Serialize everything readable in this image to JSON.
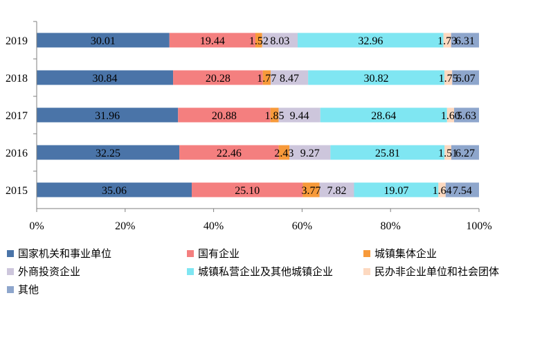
{
  "chart_data": {
    "type": "bar",
    "orientation": "horizontal",
    "stacked": "percent",
    "categories": [
      "2019",
      "2018",
      "2017",
      "2016",
      "2015"
    ],
    "series": [
      {
        "name": "国家机关和事业单位",
        "color": "#4a74a8",
        "values": [
          30.01,
          30.84,
          31.96,
          32.25,
          35.06
        ]
      },
      {
        "name": "国有企业",
        "color": "#f47f7f",
        "values": [
          19.44,
          20.28,
          20.88,
          22.46,
          25.1
        ]
      },
      {
        "name": "城镇集体企业",
        "color": "#f79a3a",
        "values": [
          1.52,
          1.77,
          1.85,
          2.43,
          3.77
        ]
      },
      {
        "name": "外商投资企业",
        "color": "#cdc6dc",
        "values": [
          8.03,
          8.47,
          9.44,
          9.27,
          7.82
        ]
      },
      {
        "name": "城镇私营企业及其他城镇企业",
        "color": "#7fe6f2",
        "values": [
          32.96,
          30.82,
          28.64,
          25.81,
          19.07
        ]
      },
      {
        "name": "民办非企业单位和社会团体",
        "color": "#fdd9c0",
        "values": [
          1.73,
          1.75,
          1.6,
          1.51,
          1.64
        ]
      },
      {
        "name": "其他",
        "color": "#8ea6cc",
        "values": [
          6.31,
          6.07,
          5.63,
          6.27,
          7.54
        ]
      }
    ],
    "data_labels": [
      [
        "30.01",
        "19.44",
        "1.52",
        "8.03",
        "32.96",
        "1.73",
        "6.31"
      ],
      [
        "30.84",
        "20.28",
        "1.77",
        "8.47",
        "30.82",
        "1.75",
        "6.07"
      ],
      [
        "31.96",
        "20.88",
        "1.85",
        "9.44",
        "28.64",
        "1.60",
        "5.63"
      ],
      [
        "32.25",
        "22.46",
        "2.43",
        "9.27",
        "25.81",
        "1.51",
        "6.27"
      ],
      [
        "35.06",
        "25.10",
        "3.77",
        "7.82",
        "19.07",
        "1.64",
        "7.54"
      ]
    ],
    "x_ticks": [
      "0%",
      "20%",
      "40%",
      "60%",
      "80%",
      "100%"
    ],
    "xlim": [
      0,
      100
    ],
    "title": "",
    "xlabel": "",
    "ylabel": "",
    "grid": false,
    "legend_position": "bottom"
  }
}
